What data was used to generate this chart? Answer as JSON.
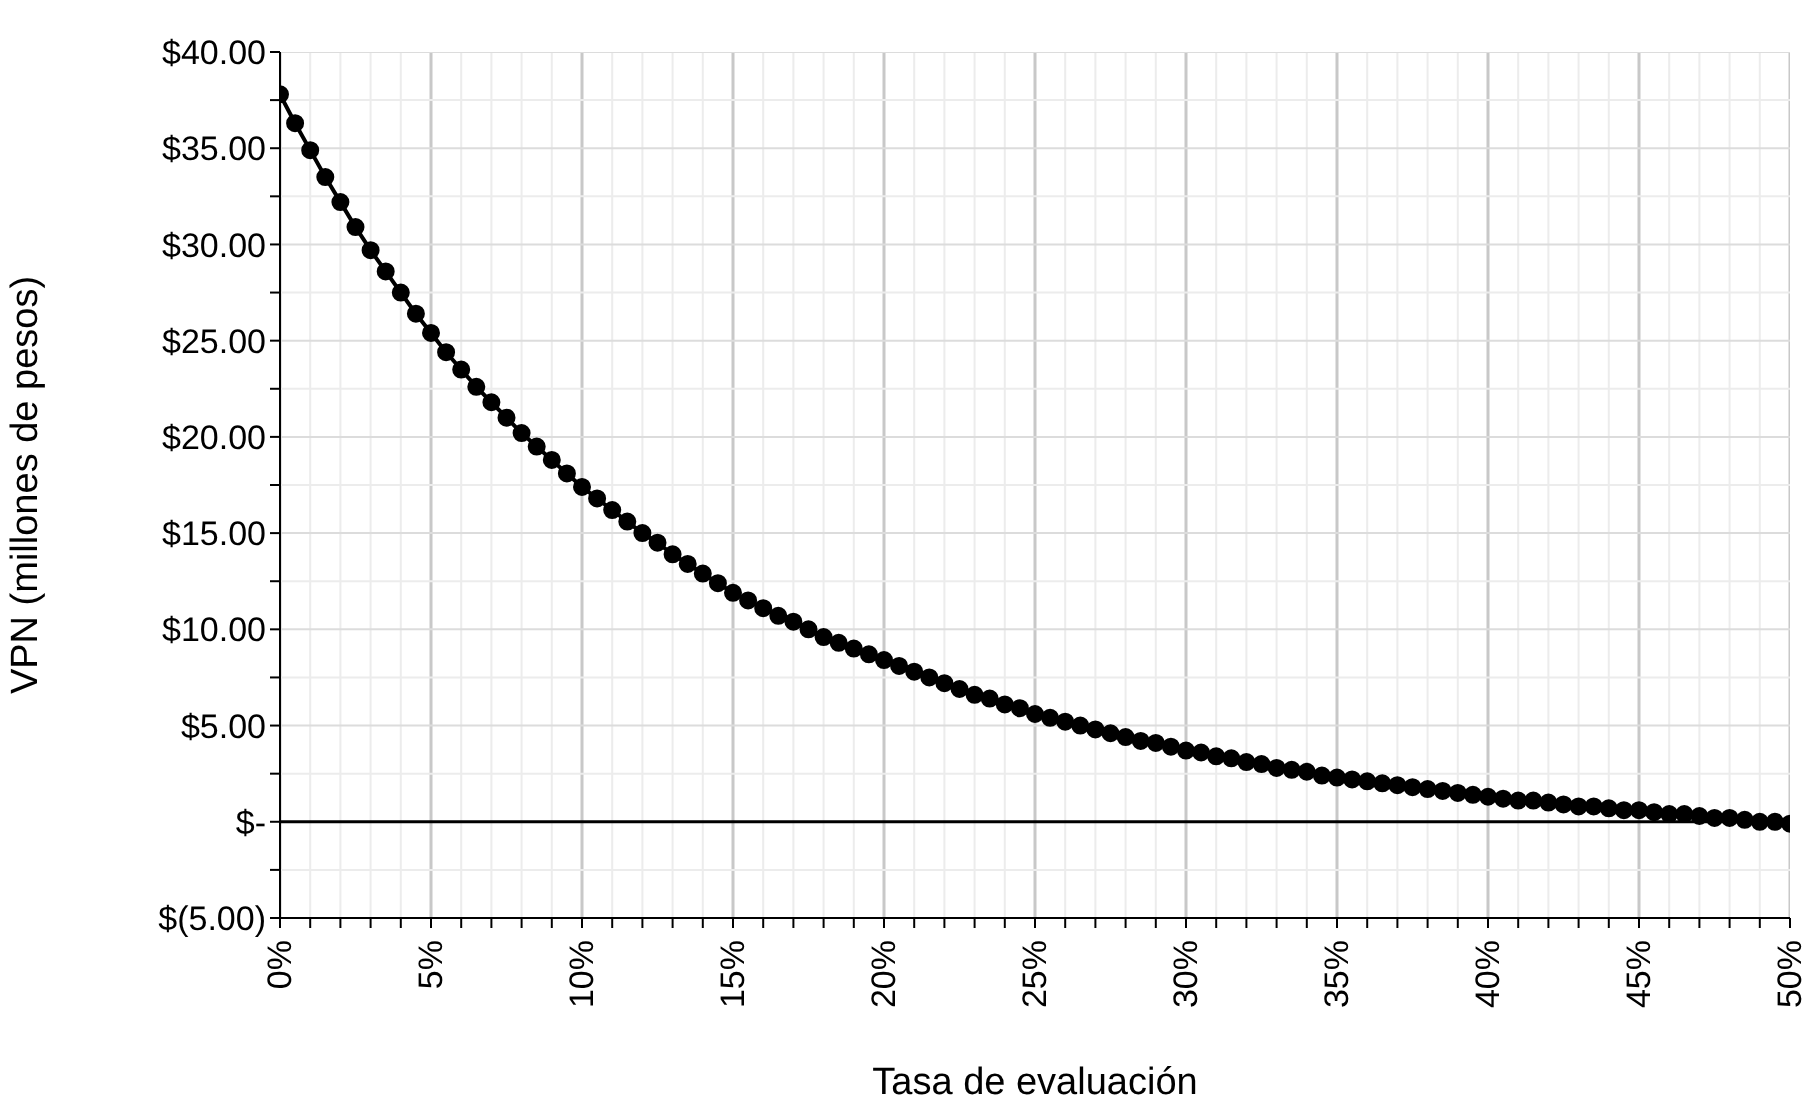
{
  "chart_data": {
    "type": "line",
    "xlabel": "Tasa de evaluación",
    "ylabel": "VPN (millones de pesos)",
    "x": [
      0,
      0.5,
      1,
      1.5,
      2,
      2.5,
      3,
      3.5,
      4,
      4.5,
      5,
      5.5,
      6,
      6.5,
      7,
      7.5,
      8,
      8.5,
      9,
      9.5,
      10,
      10.5,
      11,
      11.5,
      12,
      12.5,
      13,
      13.5,
      14,
      14.5,
      15,
      15.5,
      16,
      16.5,
      17,
      17.5,
      18,
      18.5,
      19,
      19.5,
      20,
      20.5,
      21,
      21.5,
      22,
      22.5,
      23,
      23.5,
      24,
      24.5,
      25,
      25.5,
      26,
      26.5,
      27,
      27.5,
      28,
      28.5,
      29,
      29.5,
      30,
      30.5,
      31,
      31.5,
      32,
      32.5,
      33,
      33.5,
      34,
      34.5,
      35,
      35.5,
      36,
      36.5,
      37,
      37.5,
      38,
      38.5,
      39,
      39.5,
      40,
      40.5,
      41,
      41.5,
      42,
      42.5,
      43,
      43.5,
      44,
      44.5,
      45,
      45.5,
      46,
      46.5,
      47,
      47.5,
      48,
      48.5,
      49,
      49.5,
      50
    ],
    "series": [
      {
        "color": "#000000",
        "values": [
          37.8,
          36.3,
          34.9,
          33.5,
          32.2,
          30.9,
          29.7,
          28.6,
          27.5,
          26.4,
          25.4,
          24.4,
          23.5,
          22.6,
          21.8,
          21.0,
          20.2,
          19.5,
          18.8,
          18.1,
          17.4,
          16.8,
          16.2,
          15.6,
          15.0,
          14.5,
          13.9,
          13.4,
          12.9,
          12.4,
          11.9,
          11.5,
          11.1,
          10.7,
          10.4,
          10.0,
          9.6,
          9.3,
          9.0,
          8.7,
          8.4,
          8.1,
          7.8,
          7.5,
          7.2,
          6.9,
          6.6,
          6.4,
          6.1,
          5.9,
          5.6,
          5.4,
          5.2,
          5.0,
          4.8,
          4.6,
          4.4,
          4.2,
          4.1,
          3.9,
          3.7,
          3.6,
          3.4,
          3.3,
          3.1,
          3.0,
          2.8,
          2.7,
          2.6,
          2.4,
          2.3,
          2.2,
          2.1,
          2.0,
          1.9,
          1.8,
          1.7,
          1.6,
          1.5,
          1.4,
          1.3,
          1.2,
          1.1,
          1.1,
          1.0,
          0.9,
          0.8,
          0.8,
          0.7,
          0.6,
          0.6,
          0.5,
          0.4,
          0.4,
          0.3,
          0.2,
          0.2,
          0.1,
          0.0,
          0.0,
          -0.1
        ]
      }
    ],
    "xlim": [
      0,
      50
    ],
    "xticks": [
      {
        "value": 0,
        "label": "0%"
      },
      {
        "value": 1,
        "label": null
      },
      {
        "value": 2,
        "label": null
      },
      {
        "value": 3,
        "label": null
      },
      {
        "value": 4,
        "label": null
      },
      {
        "value": 5,
        "label": "5%"
      },
      {
        "value": 6,
        "label": null
      },
      {
        "value": 7,
        "label": null
      },
      {
        "value": 8,
        "label": null
      },
      {
        "value": 9,
        "label": null
      },
      {
        "value": 10,
        "label": "10%"
      },
      {
        "value": 11,
        "label": null
      },
      {
        "value": 12,
        "label": null
      },
      {
        "value": 13,
        "label": null
      },
      {
        "value": 14,
        "label": null
      },
      {
        "value": 15,
        "label": "15%"
      },
      {
        "value": 16,
        "label": null
      },
      {
        "value": 17,
        "label": null
      },
      {
        "value": 18,
        "label": null
      },
      {
        "value": 19,
        "label": null
      },
      {
        "value": 20,
        "label": "20%"
      },
      {
        "value": 21,
        "label": null
      },
      {
        "value": 22,
        "label": null
      },
      {
        "value": 23,
        "label": null
      },
      {
        "value": 24,
        "label": null
      },
      {
        "value": 25,
        "label": "25%"
      },
      {
        "value": 26,
        "label": null
      },
      {
        "value": 27,
        "label": null
      },
      {
        "value": 28,
        "label": null
      },
      {
        "value": 29,
        "label": null
      },
      {
        "value": 30,
        "label": "30%"
      },
      {
        "value": 31,
        "label": null
      },
      {
        "value": 32,
        "label": null
      },
      {
        "value": 33,
        "label": null
      },
      {
        "value": 34,
        "label": null
      },
      {
        "value": 35,
        "label": "35%"
      },
      {
        "value": 36,
        "label": null
      },
      {
        "value": 37,
        "label": null
      },
      {
        "value": 38,
        "label": null
      },
      {
        "value": 39,
        "label": null
      },
      {
        "value": 40,
        "label": "40%"
      },
      {
        "value": 41,
        "label": null
      },
      {
        "value": 42,
        "label": null
      },
      {
        "value": 43,
        "label": null
      },
      {
        "value": 44,
        "label": null
      },
      {
        "value": 45,
        "label": "45%"
      },
      {
        "value": 46,
        "label": null
      },
      {
        "value": 47,
        "label": null
      },
      {
        "value": 48,
        "label": null
      },
      {
        "value": 49,
        "label": null
      },
      {
        "value": 50,
        "label": "50%"
      }
    ],
    "ylim": [
      -5,
      40
    ],
    "yticks": [
      {
        "value": -5,
        "label": "$(5.00)"
      },
      {
        "value": -2.5,
        "label": null
      },
      {
        "value": 0,
        "label": "$-"
      },
      {
        "value": 2.5,
        "label": null
      },
      {
        "value": 5,
        "label": "$5.00"
      },
      {
        "value": 7.5,
        "label": null
      },
      {
        "value": 10,
        "label": "$10.00"
      },
      {
        "value": 12.5,
        "label": null
      },
      {
        "value": 15,
        "label": "$15.00"
      },
      {
        "value": 17.5,
        "label": null
      },
      {
        "value": 20,
        "label": "$20.00"
      },
      {
        "value": 22.5,
        "label": null
      },
      {
        "value": 25,
        "label": "$25.00"
      },
      {
        "value": 27.5,
        "label": null
      },
      {
        "value": 30,
        "label": "$30.00"
      },
      {
        "value": 32.5,
        "label": null
      },
      {
        "value": 35,
        "label": "$35.00"
      },
      {
        "value": 37.5,
        "label": null
      },
      {
        "value": 40,
        "label": "$40.00"
      }
    ],
    "grid": true,
    "legend": false,
    "marker": "circle",
    "line_style": "solid"
  }
}
